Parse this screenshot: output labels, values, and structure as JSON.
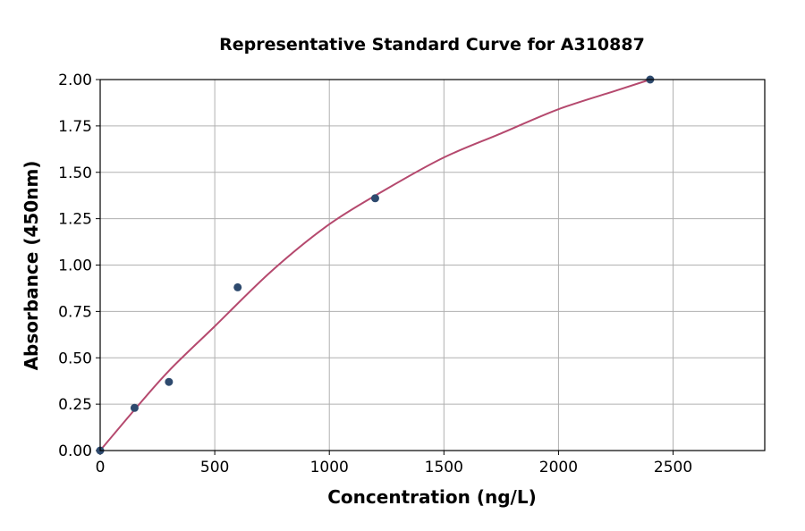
{
  "chart_data": {
    "type": "scatter",
    "title": "Representative Standard Curve for A310887",
    "xlabel": "Concentration (ng/L)",
    "ylabel": "Absorbance (450nm)",
    "xlim": [
      0,
      2900
    ],
    "ylim": [
      0,
      2.0
    ],
    "xticks": [
      0,
      500,
      1000,
      1500,
      2000,
      2500
    ],
    "yticks": [
      "0.00",
      "0.25",
      "0.50",
      "0.75",
      "1.00",
      "1.25",
      "1.50",
      "1.75",
      "2.00"
    ],
    "grid": true,
    "points": {
      "x": [
        0,
        150,
        300,
        600,
        1200,
        2400
      ],
      "y": [
        0.0,
        0.23,
        0.37,
        0.88,
        1.36,
        2.0
      ],
      "color": "#2e4a6e"
    },
    "fit_curve": {
      "x": [
        0,
        150,
        300,
        500,
        750,
        1000,
        1250,
        1500,
        1750,
        2000,
        2250,
        2400
      ],
      "y": [
        0,
        0.22,
        0.43,
        0.67,
        0.97,
        1.22,
        1.41,
        1.58,
        1.71,
        1.84,
        1.94,
        2.0
      ],
      "color": "#b5496e"
    }
  }
}
